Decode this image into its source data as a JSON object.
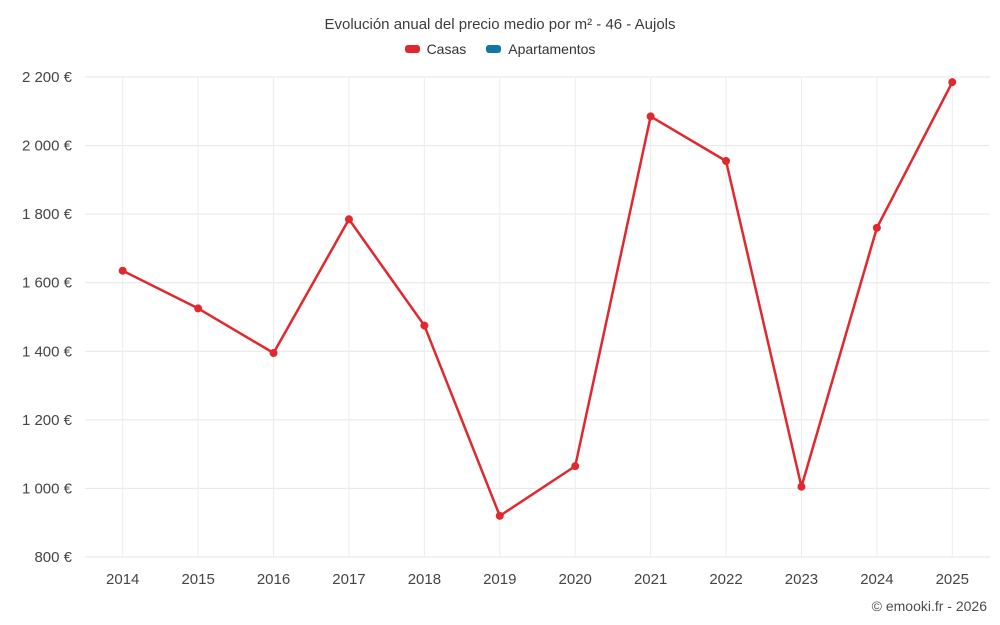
{
  "page": {
    "footer": "© emooki.fr - 2026"
  },
  "legend": {
    "items": [
      {
        "label": "Casas",
        "color": "#e0282e"
      },
      {
        "label": "Apartamentos",
        "color": "#1374a6"
      }
    ]
  },
  "chart_data": {
    "type": "line",
    "title": "Evolución anual del precio medio por m² - 46 - Aujols",
    "categories": [
      "2014",
      "2015",
      "2016",
      "2017",
      "2018",
      "2019",
      "2020",
      "2021",
      "2022",
      "2023",
      "2024",
      "2025"
    ],
    "series": [
      {
        "name": "Casas",
        "color": "#e0282e",
        "values": [
          1635,
          1525,
          1395,
          1785,
          1475,
          920,
          1065,
          2085,
          1955,
          1005,
          1760,
          2185
        ]
      },
      {
        "name": "Apartamentos",
        "color": "#1374a6",
        "values": []
      }
    ],
    "xlabel": "",
    "ylabel": "",
    "ylim": [
      800,
      2200
    ],
    "ytick_step": 200,
    "ytick_format": "{value} €",
    "grid": true,
    "legend_position": "top"
  }
}
